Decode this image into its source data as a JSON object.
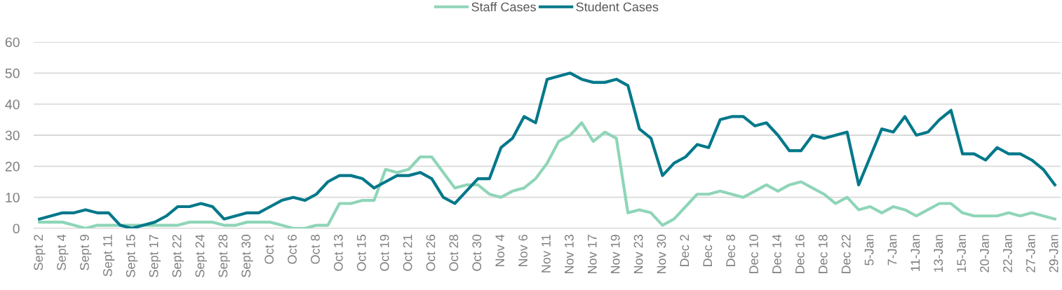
{
  "chart_data": {
    "type": "line",
    "categories": [
      "Sept 2",
      null,
      "Sept 4",
      null,
      "Sept 9",
      null,
      "Sept 11",
      null,
      "Sept 15",
      null,
      "Sept 17",
      null,
      "Sept 22",
      null,
      "Sept 24",
      null,
      "Sept 28",
      null,
      "Sept 30",
      null,
      "Oct 2",
      null,
      "Oct 6",
      null,
      "Oct 8",
      null,
      "Oct 13",
      null,
      "Oct 15",
      null,
      "Oct 19",
      null,
      "Oct 21",
      null,
      "Oct 26",
      null,
      "Oct 28",
      null,
      "Oct 30",
      null,
      "Nov 4",
      null,
      "Nov 6",
      null,
      "Nov 11",
      null,
      "Nov 13",
      null,
      "Nov 17",
      null,
      "Nov 19",
      null,
      "Nov 23",
      null,
      "Nov 30",
      null,
      "Dec 2",
      null,
      "Dec 4",
      null,
      "Dec 8",
      null,
      "Dec 10",
      null,
      "Dec 14",
      null,
      "Dec 16",
      null,
      "Dec 18",
      null,
      "Dec 22",
      null,
      "5-Jan",
      null,
      "7-Jan",
      null,
      "11-Jan",
      null,
      "13-Jan",
      null,
      "15-Jan",
      null,
      "20-Jan",
      null,
      "22-Jan",
      null,
      "27-Jan",
      null,
      "29-Jan"
    ],
    "series": [
      {
        "name": "Staff Cases",
        "color": "#8fd5b8",
        "values": [
          2,
          2,
          2,
          1,
          0,
          1,
          1,
          1,
          1,
          1,
          1,
          1,
          1,
          2,
          2,
          2,
          1,
          1,
          2,
          2,
          2,
          1,
          0,
          0,
          1,
          1,
          8,
          8,
          9,
          9,
          19,
          18,
          19,
          23,
          23,
          18,
          13,
          14,
          14,
          11,
          10,
          12,
          13,
          16,
          21,
          28,
          30,
          34,
          28,
          31,
          29,
          5,
          6,
          5,
          1,
          3,
          7,
          11,
          11,
          12,
          11,
          10,
          12,
          14,
          12,
          14,
          15,
          13,
          11,
          8,
          10,
          6,
          7,
          5,
          7,
          6,
          4,
          6,
          8,
          8,
          5,
          4,
          4,
          4,
          5,
          4,
          5,
          4,
          3
        ]
      },
      {
        "name": "Student Cases",
        "color": "#00788a",
        "values": [
          3,
          4,
          5,
          5,
          6,
          5,
          5,
          1,
          0,
          1,
          2,
          4,
          7,
          7,
          8,
          7,
          3,
          4,
          5,
          5,
          7,
          9,
          10,
          9,
          11,
          15,
          17,
          17,
          16,
          13,
          15,
          17,
          17,
          18,
          16,
          10,
          8,
          12,
          16,
          16,
          26,
          29,
          36,
          34,
          48,
          49,
          50,
          48,
          47,
          47,
          48,
          46,
          32,
          29,
          17,
          21,
          23,
          27,
          26,
          35,
          36,
          36,
          33,
          34,
          30,
          25,
          25,
          30,
          29,
          30,
          31,
          14,
          23,
          32,
          31,
          36,
          30,
          31,
          35,
          38,
          24,
          24,
          22,
          26,
          24,
          24,
          22,
          19,
          14
        ]
      }
    ],
    "ylim": [
      0,
      60
    ],
    "yticks": [
      0,
      10,
      20,
      30,
      40,
      50,
      60
    ],
    "grid": "y",
    "legend": "top",
    "marker": "none",
    "line_style": "solid"
  }
}
